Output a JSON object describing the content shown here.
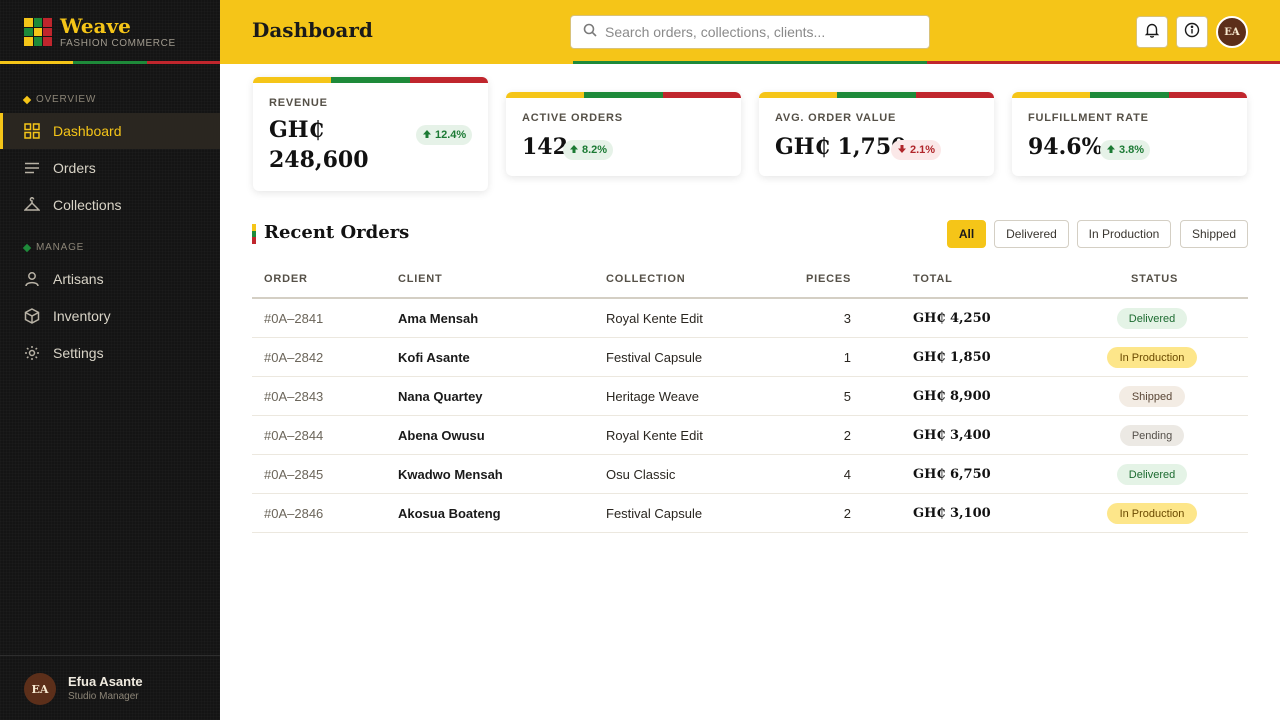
{
  "brand": {
    "name": "Weave",
    "subtitle": "FASHION COMMERCE"
  },
  "colors": {
    "gold": "#f5c518",
    "green": "#1e8a3a",
    "red": "#c0262d",
    "dark": "#141414"
  },
  "sidebar": {
    "sections": [
      {
        "label": "OVERVIEW"
      },
      {
        "label": "MANAGE"
      }
    ],
    "items": [
      {
        "label": "Dashboard",
        "icon": "grid-icon"
      },
      {
        "label": "Orders",
        "icon": "list-icon"
      },
      {
        "label": "Collections",
        "icon": "hanger-icon"
      },
      {
        "label": "Artisans",
        "icon": "user-icon"
      },
      {
        "label": "Inventory",
        "icon": "box-icon"
      },
      {
        "label": "Settings",
        "icon": "gear-icon"
      }
    ],
    "user": {
      "initials": "EA",
      "name": "Efua Asante",
      "role": "Studio Manager"
    }
  },
  "header": {
    "title": "Dashboard",
    "search_placeholder": "Search orders, collections, clients...",
    "avatar_initials": "EA"
  },
  "stats": [
    {
      "label": "REVENUE",
      "value_line1": "GH₵",
      "value_line2": "248,600",
      "delta": "12.4%",
      "direction": "up"
    },
    {
      "label": "ACTIVE ORDERS",
      "value": "142",
      "delta": "8.2%",
      "direction": "up"
    },
    {
      "label": "AVG. ORDER VALUE",
      "value": "GH₵ 1,750",
      "delta": "2.1%",
      "direction": "down"
    },
    {
      "label": "FULFILLMENT RATE",
      "value": "94.6%",
      "delta": "3.8%",
      "direction": "up"
    }
  ],
  "orders": {
    "title": "Recent Orders",
    "filters": [
      "All",
      "Delivered",
      "In Production",
      "Shipped"
    ],
    "active_filter": "All",
    "columns": [
      "ORDER",
      "CLIENT",
      "COLLECTION",
      "PIECES",
      "TOTAL",
      "STATUS"
    ],
    "rows": [
      {
        "order": "#0A–2841",
        "client": "Ama Mensah",
        "collection": "Royal Kente Edit",
        "pieces": "3",
        "total": "GH₵ 4,250",
        "status": "Delivered"
      },
      {
        "order": "#0A–2842",
        "client": "Kofi Asante",
        "collection": "Festival Capsule",
        "pieces": "1",
        "total": "GH₵ 1,850",
        "status": "In Production"
      },
      {
        "order": "#0A–2843",
        "client": "Nana Quartey",
        "collection": "Heritage Weave",
        "pieces": "5",
        "total": "GH₵ 8,900",
        "status": "Shipped"
      },
      {
        "order": "#0A–2844",
        "client": "Abena Owusu",
        "collection": "Royal Kente Edit",
        "pieces": "2",
        "total": "GH₵ 3,400",
        "status": "Pending"
      },
      {
        "order": "#0A–2845",
        "client": "Kwadwo Mensah",
        "collection": "Osu Classic",
        "pieces": "4",
        "total": "GH₵ 6,750",
        "status": "Delivered"
      },
      {
        "order": "#0A–2846",
        "client": "Akosua Boateng",
        "collection": "Festival Capsule",
        "pieces": "2",
        "total": "GH₵ 3,100",
        "status": "In Production"
      }
    ]
  }
}
